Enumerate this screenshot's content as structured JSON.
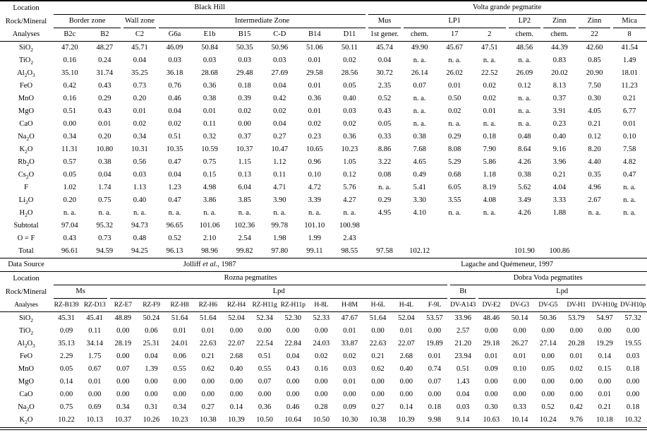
{
  "top_table": {
    "corner_labels": [
      "Location",
      "Rock/Mineral",
      "Analyses"
    ],
    "location_groups": [
      {
        "label": "Black Hill",
        "span": 9
      },
      {
        "label": "Volta grande pegmatite",
        "span": 8
      }
    ],
    "rock_groups": [
      {
        "label": "Border zone",
        "span": 2
      },
      {
        "label": "Wall zone",
        "span": 1
      },
      {
        "label": "Intermediate Zone",
        "span": 6
      },
      {
        "label": "Mus",
        "span": 1
      },
      {
        "label": "LP1",
        "span": 3
      },
      {
        "label": "LP2",
        "span": 1
      },
      {
        "label": "Zinn",
        "span": 1
      },
      {
        "label": "Zinn",
        "span": 1
      },
      {
        "label": "Mica",
        "span": 1
      }
    ],
    "analyses": [
      "B2c",
      "B2",
      "C2",
      "G6a",
      "E1b",
      "B15",
      "C-D",
      "B14",
      "D11",
      "1st gener.",
      "chem.",
      "17",
      "2",
      "chem.",
      "chem.",
      "22",
      "8"
    ],
    "rows": [
      {
        "label": "SiO2",
        "formula": true,
        "values": [
          "47.20",
          "48.27",
          "45.71",
          "46.09",
          "50.84",
          "50.35",
          "50.96",
          "51.06",
          "50.11",
          "45.74",
          "49.90",
          "45.67",
          "47.51",
          "48.56",
          "44.39",
          "42.60",
          "41.54"
        ]
      },
      {
        "label": "TiO2",
        "formula": true,
        "values": [
          "0.16",
          "0.24",
          "0.04",
          "0.03",
          "0.03",
          "0.03",
          "0.03",
          "0.01",
          "0.02",
          "0.04",
          "n. a.",
          "n. a.",
          "n. a.",
          "n. a.",
          "0.83",
          "0.85",
          "1.49"
        ]
      },
      {
        "label": "Al2O3",
        "formula": true,
        "values": [
          "35.10",
          "31.74",
          "35.25",
          "36.18",
          "28.68",
          "29.48",
          "27.69",
          "29.58",
          "28.56",
          "30.72",
          "26.14",
          "26.02",
          "22.52",
          "26.09",
          "20.02",
          "20.90",
          "18.01"
        ]
      },
      {
        "label": "FeO",
        "formula": true,
        "values": [
          "0.42",
          "0.43",
          "0.73",
          "0.76",
          "0.36",
          "0.18",
          "0.04",
          "0.01",
          "0.05",
          "2.35",
          "0.07",
          "0.01",
          "0.02",
          "0.12",
          "8.13",
          "7.50",
          "11.23"
        ]
      },
      {
        "label": "MnO",
        "formula": true,
        "values": [
          "0.16",
          "0.29",
          "0.20",
          "0.46",
          "0.38",
          "0.39",
          "0.42",
          "0.36",
          "0.40",
          "0.52",
          "n. a.",
          "0.50",
          "0.02",
          "n. a.",
          "0.37",
          "0.30",
          "0.21"
        ]
      },
      {
        "label": "MgO",
        "formula": true,
        "values": [
          "0.51",
          "0.43",
          "0.01",
          "0.04",
          "0.01",
          "0.02",
          "0.02",
          "0.01",
          "0.03",
          "0.43",
          "n. a.",
          "0.02",
          "0.01",
          "n. a.",
          "3.91",
          "4.05",
          "6.77"
        ]
      },
      {
        "label": "CaO",
        "formula": true,
        "values": [
          "0.00",
          "0.01",
          "0.02",
          "0.02",
          "0.11",
          "0.00",
          "0.04",
          "0.02",
          "0.02",
          "0.05",
          "n. a.",
          "n. a.",
          "n. a.",
          "n. a.",
          "0.23",
          "0.21",
          "0.01"
        ]
      },
      {
        "label": "Na2O",
        "formula": true,
        "values": [
          "0.34",
          "0.20",
          "0.34",
          "0.51",
          "0.32",
          "0.37",
          "0.27",
          "0.23",
          "0.36",
          "0.33",
          "0.38",
          "0.29",
          "0.18",
          "0.48",
          "0.40",
          "0.12",
          "0.10"
        ]
      },
      {
        "label": "K2O",
        "formula": true,
        "values": [
          "11.31",
          "10.80",
          "10.31",
          "10.35",
          "10.59",
          "10.37",
          "10.47",
          "10.65",
          "10.23",
          "8.86",
          "7.68",
          "8.08",
          "7.90",
          "8.64",
          "9.16",
          "8.20",
          "7.58"
        ]
      },
      {
        "label": "Rb2O",
        "formula": true,
        "values": [
          "0.57",
          "0.38",
          "0.56",
          "0.47",
          "0.75",
          "1.15",
          "1.12",
          "0.96",
          "1.05",
          "3.22",
          "4.65",
          "5.29",
          "5.86",
          "4.26",
          "3.96",
          "4.40",
          "4.82"
        ]
      },
      {
        "label": "Cs2O",
        "formula": true,
        "values": [
          "0.05",
          "0.04",
          "0.03",
          "0.04",
          "0.15",
          "0.13",
          "0.11",
          "0.10",
          "0.12",
          "0.08",
          "0.49",
          "0.68",
          "1.18",
          "0.38",
          "0.21",
          "0.35",
          "0.47"
        ]
      },
      {
        "label": "F",
        "formula": true,
        "values": [
          "1.02",
          "1.74",
          "1.13",
          "1.23",
          "4.98",
          "6.04",
          "4.71",
          "4.72",
          "5.76",
          "n. a.",
          "5.41",
          "6.05",
          "8.19",
          "5.62",
          "4.04",
          "4.96",
          "n. a."
        ]
      },
      {
        "label": "Li2O",
        "formula": true,
        "values": [
          "0.20",
          "0.75",
          "0.40",
          "0.47",
          "3.86",
          "3.85",
          "3.90",
          "3.39",
          "4.27",
          "0.29",
          "3.30",
          "3.55",
          "4.08",
          "3.49",
          "3.33",
          "2.67",
          "n. a."
        ]
      },
      {
        "label": "H2O",
        "formula": true,
        "values": [
          "n. a.",
          "n. a.",
          "n. a.",
          "n. a.",
          "n. a.",
          "n. a.",
          "n. a.",
          "n. a.",
          "n. a.",
          "4.95",
          "4.10",
          "n. a.",
          "n. a.",
          "4.26",
          "1.88",
          "n. a.",
          "n. a."
        ]
      },
      {
        "label": "Subtotal",
        "formula": false,
        "values": [
          "97.04",
          "95.32",
          "94.73",
          "96.65",
          "101.06",
          "102.36",
          "99.78",
          "101.10",
          "100.98",
          "",
          "",
          "",
          "",
          "",
          "",
          "",
          ""
        ]
      },
      {
        "label": "O = F",
        "formula": false,
        "values": [
          "0.43",
          "0.73",
          "0.48",
          "0.52",
          "2.10",
          "2.54",
          "1.98",
          "1.99",
          "2.43",
          "",
          "",
          "",
          "",
          "",
          "",
          "",
          ""
        ]
      },
      {
        "label": "Total",
        "formula": false,
        "values": [
          "96.61",
          "94.59",
          "94.25",
          "96.13",
          "98.96",
          "99.82",
          "97.80",
          "99.11",
          "98.55",
          "97.58",
          "102.12",
          "",
          "",
          "101.90",
          "100.86",
          "",
          ""
        ]
      }
    ],
    "data_source": {
      "label": "Data Source",
      "entries": [
        {
          "pre": "Jolliff ",
          "em": "et al.",
          "post": ", 1987",
          "span": 9
        },
        {
          "pre": "Lagache and Quémeneur, 1997",
          "em": "",
          "post": "",
          "span": 8
        }
      ]
    }
  },
  "bottom_table": {
    "corner_labels": [
      "Location",
      "Rock/Mineral",
      "Analyses"
    ],
    "location_groups": [
      {
        "label": "Rozna pegmatites",
        "span": 14
      },
      {
        "label": "Dobra Voda pegmatites",
        "span": 7
      }
    ],
    "rock_groups": [
      {
        "label": "Ms",
        "span": 2
      },
      {
        "label": "Lpd",
        "span": 12
      },
      {
        "label": "Bt",
        "span": 1
      },
      {
        "label": "Lpd",
        "span": 6
      }
    ],
    "analyses": [
      "RZ-B139",
      "RZ-D13",
      "RZ-E7",
      "RZ-F9",
      "RZ-H8",
      "RZ-H6",
      "RZ-H4",
      "RZ-H11g",
      "RZ-H11p",
      "H-8L",
      "H-8M",
      "H-6L",
      "H-4L",
      "F-9L",
      "DV-A143",
      "DV-E2",
      "DV-G3",
      "DV-G5",
      "DV-H1",
      "DV-H10g",
      "DV-H10p"
    ],
    "rows": [
      {
        "label": "SiO2",
        "formula": true,
        "values": [
          "45.31",
          "45.41",
          "48.89",
          "50.24",
          "51.64",
          "51.64",
          "52.04",
          "52.34",
          "52.30",
          "52.33",
          "47.67",
          "51.64",
          "52.04",
          "53.57",
          "33.96",
          "48.46",
          "50.14",
          "50.36",
          "53.79",
          "54.97",
          "57.32"
        ]
      },
      {
        "label": "TiO2",
        "formula": true,
        "values": [
          "0.09",
          "0.11",
          "0.00",
          "0.06",
          "0.01",
          "0.01",
          "0.00",
          "0.00",
          "0.00",
          "0.00",
          "0.01",
          "0.00",
          "0.01",
          "0.00",
          "2.57",
          "0.00",
          "0.00",
          "0.00",
          "0.00",
          "0.00",
          "0.00"
        ]
      },
      {
        "label": "Al2O3",
        "formula": true,
        "values": [
          "35.13",
          "34.14",
          "28.19",
          "25.31",
          "24.01",
          "22.63",
          "22.07",
          "22.54",
          "22.84",
          "24.03",
          "33.87",
          "22.63",
          "22.07",
          "19.89",
          "21.20",
          "29.18",
          "26.27",
          "27.14",
          "20.28",
          "19.29",
          "19.55"
        ]
      },
      {
        "label": "FeO",
        "formula": true,
        "values": [
          "2.29",
          "1.75",
          "0.00",
          "0.04",
          "0.06",
          "0.21",
          "2.68",
          "0.51",
          "0.04",
          "0.02",
          "0.02",
          "0.21",
          "2.68",
          "0.01",
          "23.94",
          "0.01",
          "0.01",
          "0.00",
          "0.01",
          "0.14",
          "0.03"
        ]
      },
      {
        "label": "MnO",
        "formula": true,
        "values": [
          "0.05",
          "0.67",
          "0.07",
          "1.39",
          "0.55",
          "0.62",
          "0.40",
          "0.55",
          "0.43",
          "0.16",
          "0.03",
          "0.62",
          "0.40",
          "0.74",
          "0.51",
          "0.09",
          "0.10",
          "0.05",
          "0.02",
          "0.15",
          "0.18"
        ]
      },
      {
        "label": "MgO",
        "formula": true,
        "values": [
          "0.14",
          "0.01",
          "0.00",
          "0.00",
          "0.00",
          "0.00",
          "0.00",
          "0.07",
          "0.00",
          "0.00",
          "0.01",
          "0.00",
          "0.00",
          "0.07",
          "1.43",
          "0.00",
          "0.00",
          "0.00",
          "0.00",
          "0.00",
          "0.00"
        ]
      },
      {
        "label": "CaO",
        "formula": true,
        "values": [
          "0.00",
          "0.00",
          "0.00",
          "0.00",
          "0.00",
          "0.00",
          "0.00",
          "0.00",
          "0.00",
          "0.00",
          "0.00",
          "0.00",
          "0.00",
          "0.00",
          "0.04",
          "0.00",
          "0.00",
          "0.00",
          "0.00",
          "0.01",
          "0.00"
        ]
      },
      {
        "label": "Na2O",
        "formula": true,
        "values": [
          "0.75",
          "0.69",
          "0.34",
          "0.31",
          "0.34",
          "0.27",
          "0.14",
          "0.36",
          "0.46",
          "0.28",
          "0.09",
          "0.27",
          "0.14",
          "0.18",
          "0.03",
          "0.30",
          "0.33",
          "0.52",
          "0.42",
          "0.21",
          "0.18"
        ]
      },
      {
        "label": "K2O",
        "formula": true,
        "values": [
          "10.22",
          "10.13",
          "10.37",
          "10.26",
          "10.23",
          "10.38",
          "10.39",
          "10.50",
          "10.64",
          "10.50",
          "10.30",
          "10.38",
          "10.39",
          "9.98",
          "9.14",
          "10.63",
          "10.14",
          "10.24",
          "9.76",
          "10.18",
          "10.32"
        ]
      }
    ]
  }
}
